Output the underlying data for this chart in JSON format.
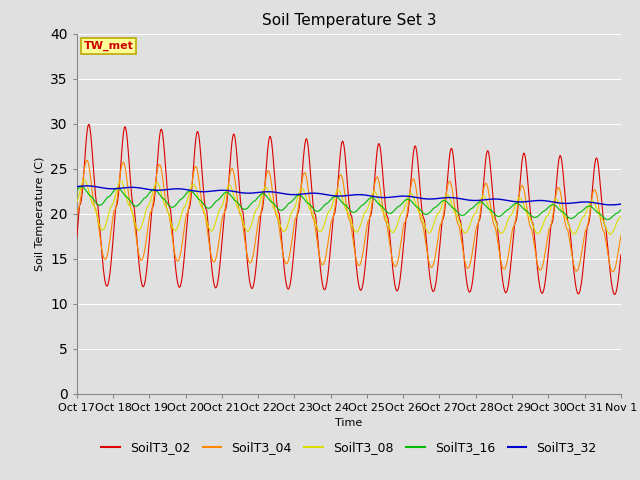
{
  "title": "Soil Temperature Set 3",
  "xlabel": "Time",
  "ylabel": "Soil Temperature (C)",
  "ylim": [
    0,
    40
  ],
  "yticks": [
    0,
    5,
    10,
    15,
    20,
    25,
    30,
    35,
    40
  ],
  "xtick_labels": [
    "Oct 17",
    "Oct 18",
    "Oct 19",
    "Oct 20",
    "Oct 21",
    "Oct 22",
    "Oct 23",
    "Oct 24",
    "Oct 25",
    "Oct 26",
    "Oct 27",
    "Oct 28",
    "Oct 29",
    "Oct 30",
    "Oct 31",
    "Nov 1"
  ],
  "annotation_text": "TW_met",
  "annotation_box_color": "#ffff99",
  "annotation_border_color": "#bbaa00",
  "annotation_text_color": "#cc0000",
  "colors": {
    "SoilT3_02": "#dd0000",
    "SoilT3_04": "#ff8800",
    "SoilT3_08": "#dddd00",
    "SoilT3_16": "#00bb00",
    "SoilT3_32": "#0000cc"
  },
  "bg_color": "#e0e0e0",
  "plot_bg_color": "#e0e0e0",
  "grid_color": "#ffffff",
  "title_fontsize": 11,
  "axis_fontsize": 8,
  "legend_fontsize": 9,
  "n_days": 15,
  "points_per_day": 144
}
